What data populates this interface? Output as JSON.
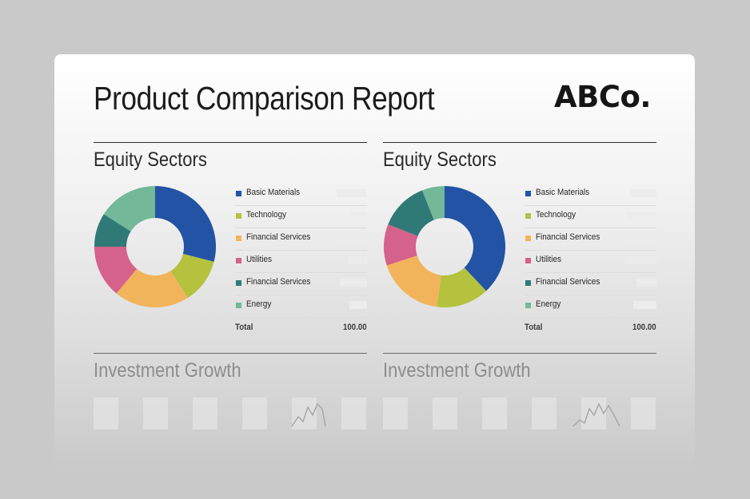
{
  "report": {
    "title": "Product Comparison Report",
    "logo": "ABCo."
  },
  "colors": {
    "basic_materials": "#2253a4",
    "technology": "#b4c23e",
    "financial_services": "#f2b45b",
    "utilities": "#d5628a",
    "financial_services_2": "#2f7a76",
    "energy": "#72b899"
  },
  "panels": [
    {
      "heading": "Equity Sectors",
      "growth_heading": "Investment Growth",
      "total_label": "Total",
      "total_value": "100.00",
      "legend": [
        "Basic Materials",
        "Technology",
        "Financial Services",
        "Utilities",
        "Financial Services",
        "Energy"
      ]
    },
    {
      "heading": "Equity Sectors",
      "growth_heading": "Investment Growth",
      "total_label": "Total",
      "total_value": "100.00",
      "legend": [
        "Basic Materials",
        "Technology",
        "Financial Services",
        "Utilities",
        "Financial Services",
        "Energy"
      ]
    }
  ],
  "chart_data": [
    {
      "type": "pie",
      "title": "Equity Sectors",
      "categories": [
        "Basic Materials",
        "Technology",
        "Financial Services",
        "Utilities",
        "Financial Services",
        "Energy"
      ],
      "values": [
        29,
        12,
        20,
        14,
        9,
        16
      ],
      "colors": [
        "#2253a4",
        "#b4c23e",
        "#f2b45b",
        "#d5628a",
        "#2f7a76",
        "#72b899"
      ],
      "legend": "right"
    },
    {
      "type": "pie",
      "title": "Equity Sectors",
      "categories": [
        "Basic Materials",
        "Technology",
        "Financial Services",
        "Utilities",
        "Financial Services",
        "Energy"
      ],
      "values": [
        38,
        14,
        18,
        11,
        13,
        6
      ],
      "colors": [
        "#2253a4",
        "#b4c23e",
        "#f2b45b",
        "#d5628a",
        "#2f7a76",
        "#72b899"
      ],
      "legend": "right"
    }
  ]
}
